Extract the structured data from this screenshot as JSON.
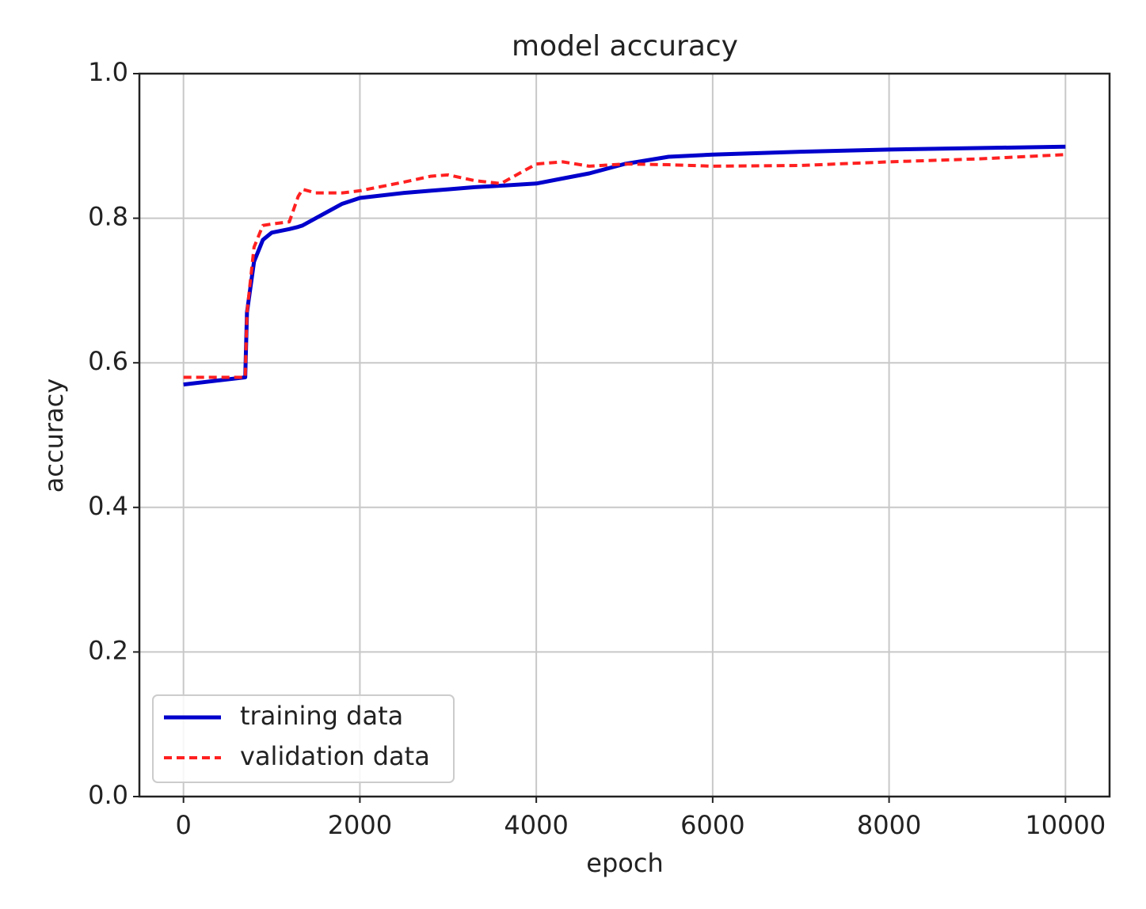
{
  "chart_data": {
    "type": "line",
    "title": "model accuracy",
    "x_label": "epoch",
    "y_label": "accuracy",
    "x": [
      0,
      700,
      720,
      800,
      900,
      1000,
      1200,
      1300,
      1350,
      1500,
      1800,
      2000,
      2500,
      2800,
      3000,
      3300,
      3600,
      4000,
      4300,
      4600,
      5000,
      5500,
      6000,
      7000,
      8000,
      9000,
      10000
    ],
    "series": [
      {
        "name": "training data",
        "color": "#0000cc",
        "line_style": "solid",
        "values": [
          0.57,
          0.58,
          0.67,
          0.74,
          0.77,
          0.78,
          0.785,
          0.788,
          0.79,
          0.8,
          0.82,
          0.828,
          0.835,
          0.838,
          0.84,
          0.843,
          0.845,
          0.848,
          0.855,
          0.862,
          0.875,
          0.885,
          0.888,
          0.892,
          0.895,
          0.897,
          0.899
        ]
      },
      {
        "name": "validation data",
        "color": "#ff2020",
        "line_style": "dashed",
        "values": [
          0.58,
          0.58,
          0.67,
          0.76,
          0.79,
          0.792,
          0.795,
          0.83,
          0.84,
          0.835,
          0.835,
          0.838,
          0.85,
          0.858,
          0.86,
          0.852,
          0.848,
          0.875,
          0.878,
          0.872,
          0.875,
          0.874,
          0.872,
          0.873,
          0.878,
          0.882,
          0.888
        ]
      }
    ],
    "xlim": [
      -500,
      10500
    ],
    "ylim": [
      0,
      1
    ],
    "xticks": [
      0,
      2000,
      4000,
      6000,
      8000,
      10000
    ],
    "yticks": [
      {
        "value": 0,
        "label": "0.0"
      },
      0.2,
      0.4,
      0.6,
      0.8,
      {
        "value": 1,
        "label": "1.0"
      }
    ],
    "grid": true,
    "legend": "lower left"
  }
}
